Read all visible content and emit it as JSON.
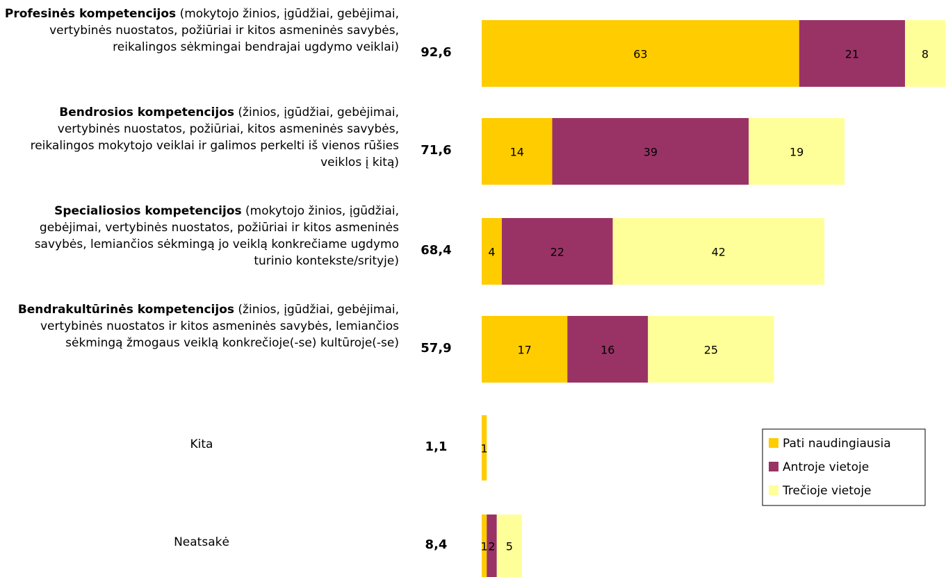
{
  "chart_data": {
    "type": "stacked_barh",
    "categories": [
      {
        "title": "Profesinės kompetencijos",
        "note": "(mokytojo žinios, įgūdžiai, gebėjimai, vertybinės nuostatos, požiūriai ir kitos asmeninės savybės, reikalingos sėkmingai bendrajai ugdymo veiklai)"
      },
      {
        "title": "Bendrosios kompetencijos",
        "note": "(žinios, įgūdžiai, gebėjimai, vertybinės nuostatos, požiūriai, kitos asmeninės savybės, reikalingos mokytojo veiklai ir galimos perkelti iš vienos rūšies veiklos į kitą)"
      },
      {
        "title": "Specialiosios kompetencijos",
        "note": "(mokytojo žinios, įgūdžiai, gebėjimai, vertybinės nuostatos, požiūriai ir kitos asmeninės savybės, lemiančios sėkmingą jo veiklą konkrečiame ugdymo turinio kontekste/srityje)"
      },
      {
        "title": "Bendrakultūrinės kompetencijos",
        "note": "(žinios, įgūdžiai, gebėjimai, vertybinės nuostatos ir kitos asmeninės savybės, lemiančios sėkmingą žmogaus veiklą konkrečioje(-se) kultūroje(-se)"
      },
      {
        "plain": "Kita"
      },
      {
        "plain": "Neatsakė"
      }
    ],
    "totals": [
      92.6,
      71.6,
      68.4,
      57.9,
      1.1,
      8.4
    ],
    "total_labels": [
      "92,6",
      "71,6",
      "68,4",
      "57,9",
      "1,1",
      "8,4"
    ],
    "series": [
      {
        "name": "Pati naudingiausia",
        "color": "#ffcc00",
        "values": [
          63,
          14,
          4,
          17,
          1,
          1
        ]
      },
      {
        "name": "Antroje vietoje",
        "color": "#993366",
        "values": [
          21,
          39,
          22,
          16,
          null,
          2
        ]
      },
      {
        "name": "Trečioje vietoje",
        "color": "#ffff99",
        "values": [
          8,
          19,
          42,
          25,
          null,
          5
        ]
      }
    ],
    "legend": "right"
  }
}
